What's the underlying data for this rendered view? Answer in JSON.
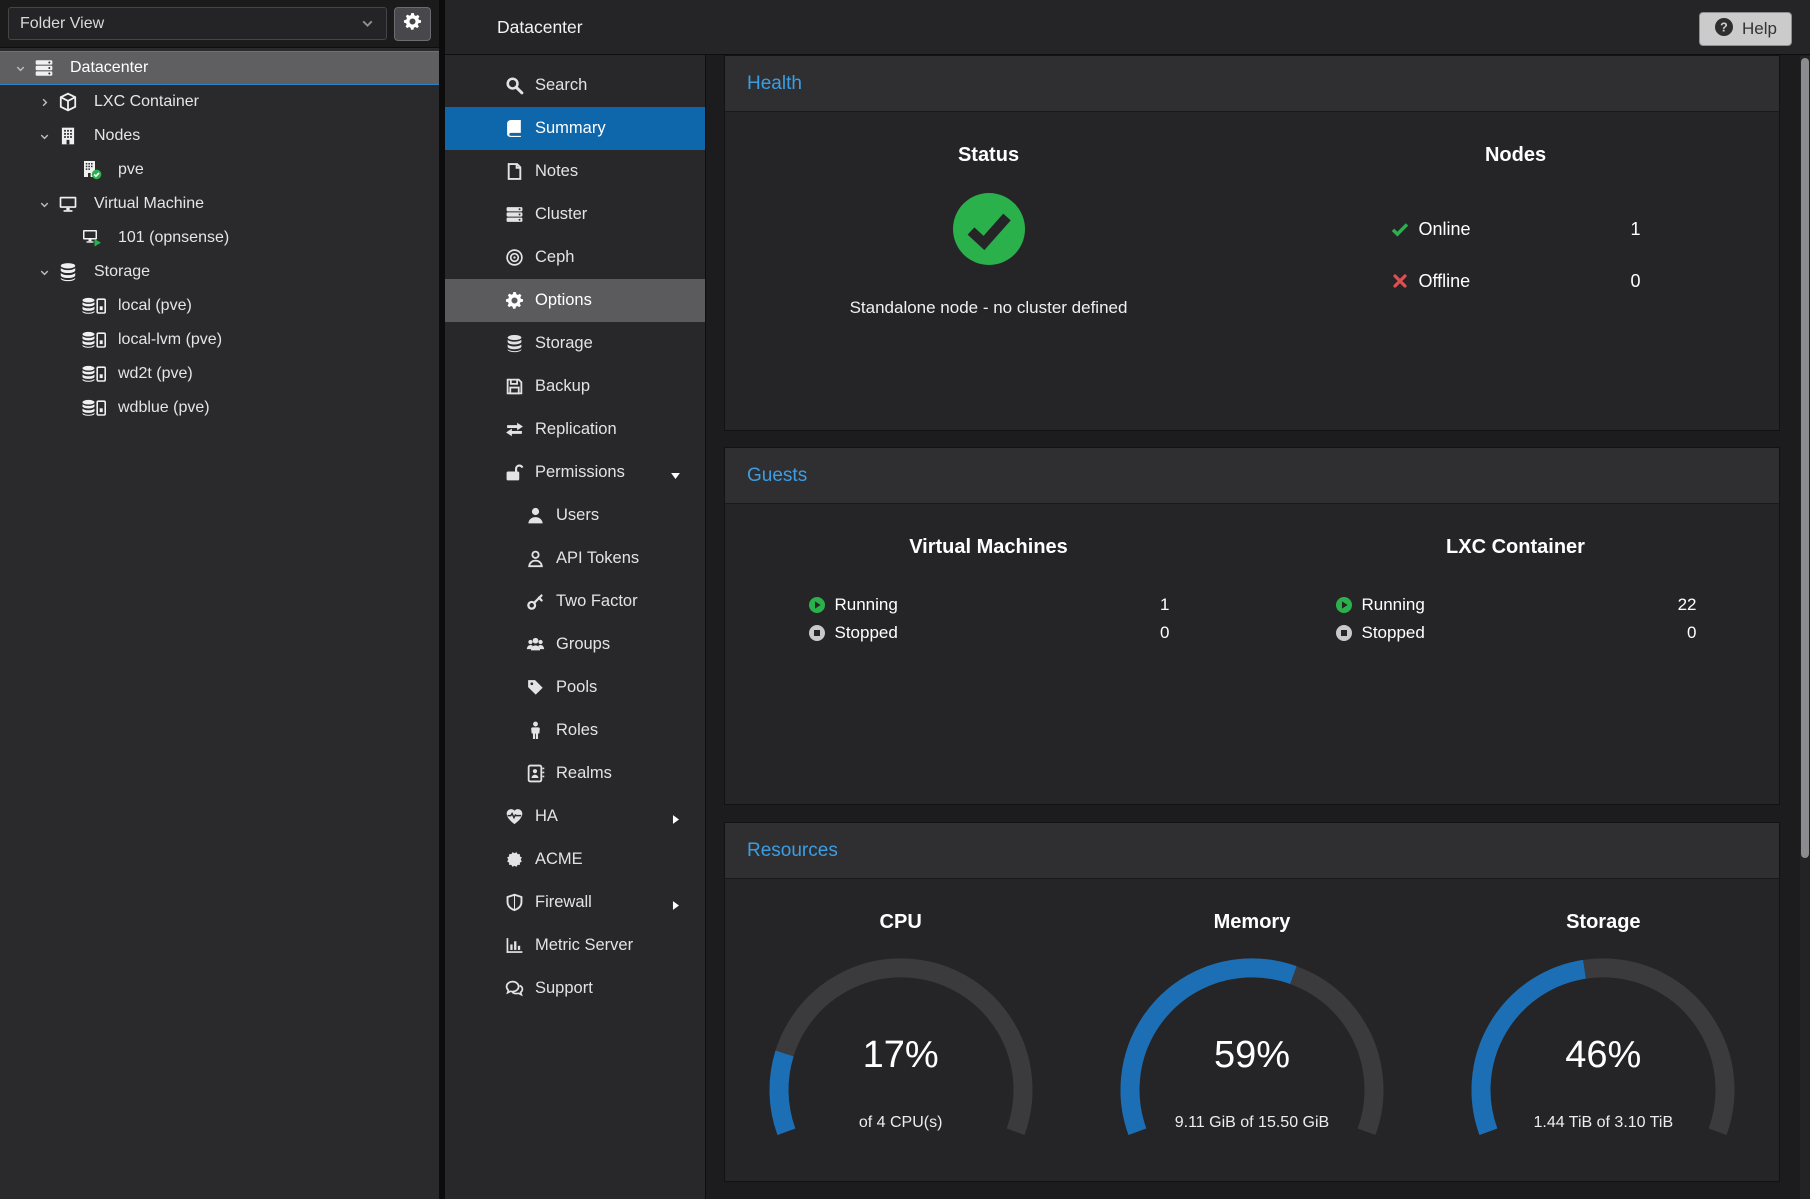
{
  "colors": {
    "accent_blue": "#3b9ee3",
    "selection_blue": "#0f67ab",
    "gauge_blue": "#1c6fb5",
    "green": "#2bb14c",
    "red": "#e04f4f"
  },
  "sidebar": {
    "view_selector": {
      "value": "Folder View",
      "icon": "chevron-down-icon"
    },
    "gear": "gear-icon",
    "tree": [
      {
        "label": "Datacenter",
        "icon": "servers-icon",
        "level": 0,
        "caret": "down",
        "selected": true
      },
      {
        "label": "LXC Container",
        "icon": "cube-icon",
        "level": 1,
        "caret": "right"
      },
      {
        "label": "Nodes",
        "icon": "building-icon",
        "level": 1,
        "caret": "down"
      },
      {
        "label": "pve",
        "icon": "node-online-icon",
        "level": 2,
        "caret": "none"
      },
      {
        "label": "Virtual Machine",
        "icon": "monitor-icon",
        "level": 1,
        "caret": "down"
      },
      {
        "label": "101 (opnsense)",
        "icon": "vm-running-icon",
        "level": 2,
        "caret": "none"
      },
      {
        "label": "Storage",
        "icon": "database-icon",
        "level": 1,
        "caret": "down"
      },
      {
        "label": "local (pve)",
        "icon": "storage-drive-icon",
        "level": 2,
        "caret": "none"
      },
      {
        "label": "local-lvm (pve)",
        "icon": "storage-drive-icon",
        "level": 2,
        "caret": "none"
      },
      {
        "label": "wd2t (pve)",
        "icon": "storage-drive-icon",
        "level": 2,
        "caret": "none"
      },
      {
        "label": "wdblue (pve)",
        "icon": "storage-drive-icon",
        "level": 2,
        "caret": "none"
      }
    ]
  },
  "nav": {
    "title": "Datacenter",
    "help_label": "Help",
    "help_icon": "question-circle-icon",
    "items": [
      {
        "label": "Search",
        "icon": "search-icon"
      },
      {
        "label": "Summary",
        "icon": "book-icon",
        "selected": true
      },
      {
        "label": "Notes",
        "icon": "note-icon"
      },
      {
        "label": "Cluster",
        "icon": "cluster-icon"
      },
      {
        "label": "Ceph",
        "icon": "ceph-icon"
      },
      {
        "label": "Options",
        "icon": "gear-icon",
        "hover": true
      },
      {
        "label": "Storage",
        "icon": "database-icon"
      },
      {
        "label": "Backup",
        "icon": "floppy-icon"
      },
      {
        "label": "Replication",
        "icon": "replication-icon"
      },
      {
        "label": "Permissions",
        "icon": "unlock-icon",
        "expand": "down"
      },
      {
        "label": "Users",
        "icon": "user-icon",
        "indent": true
      },
      {
        "label": "API Tokens",
        "icon": "user-outline-icon",
        "indent": true
      },
      {
        "label": "Two Factor",
        "icon": "key-icon",
        "indent": true
      },
      {
        "label": "Groups",
        "icon": "users-icon",
        "indent": true
      },
      {
        "label": "Pools",
        "icon": "tag-icon",
        "indent": true
      },
      {
        "label": "Roles",
        "icon": "person-icon",
        "indent": true
      },
      {
        "label": "Realms",
        "icon": "address-book-icon",
        "indent": true
      },
      {
        "label": "HA",
        "icon": "heartbeat-icon",
        "expand": "right"
      },
      {
        "label": "ACME",
        "icon": "certificate-icon"
      },
      {
        "label": "Firewall",
        "icon": "shield-icon",
        "expand": "right"
      },
      {
        "label": "Metric Server",
        "icon": "chart-bar-icon"
      },
      {
        "label": "Support",
        "icon": "comments-icon"
      }
    ]
  },
  "health": {
    "title": "Health",
    "status": {
      "heading": "Status",
      "icon": "check-circle-icon",
      "message": "Standalone node - no cluster defined"
    },
    "nodes": {
      "heading": "Nodes",
      "rows": [
        {
          "icon": "check-icon",
          "label": "Online",
          "value": "1"
        },
        {
          "icon": "cross-icon",
          "label": "Offline",
          "value": "0"
        }
      ]
    }
  },
  "guests": {
    "title": "Guests",
    "columns": [
      {
        "heading": "Virtual Machines",
        "rows": [
          {
            "icon": "play-circle-icon",
            "label": "Running",
            "value": "1"
          },
          {
            "icon": "stop-circle-icon",
            "label": "Stopped",
            "value": "0"
          }
        ]
      },
      {
        "heading": "LXC Container",
        "rows": [
          {
            "icon": "play-circle-icon",
            "label": "Running",
            "value": "22"
          },
          {
            "icon": "stop-circle-icon",
            "label": "Stopped",
            "value": "0"
          }
        ]
      }
    ]
  },
  "resources": {
    "title": "Resources",
    "gauges": [
      {
        "heading": "CPU",
        "percent": 17,
        "display": "17%",
        "detail": "of 4 CPU(s)"
      },
      {
        "heading": "Memory",
        "percent": 59,
        "display": "59%",
        "detail": "9.11 GiB of 15.50 GiB"
      },
      {
        "heading": "Storage",
        "percent": 46,
        "display": "46%",
        "detail": "1.44 TiB of 3.10 TiB"
      }
    ]
  }
}
